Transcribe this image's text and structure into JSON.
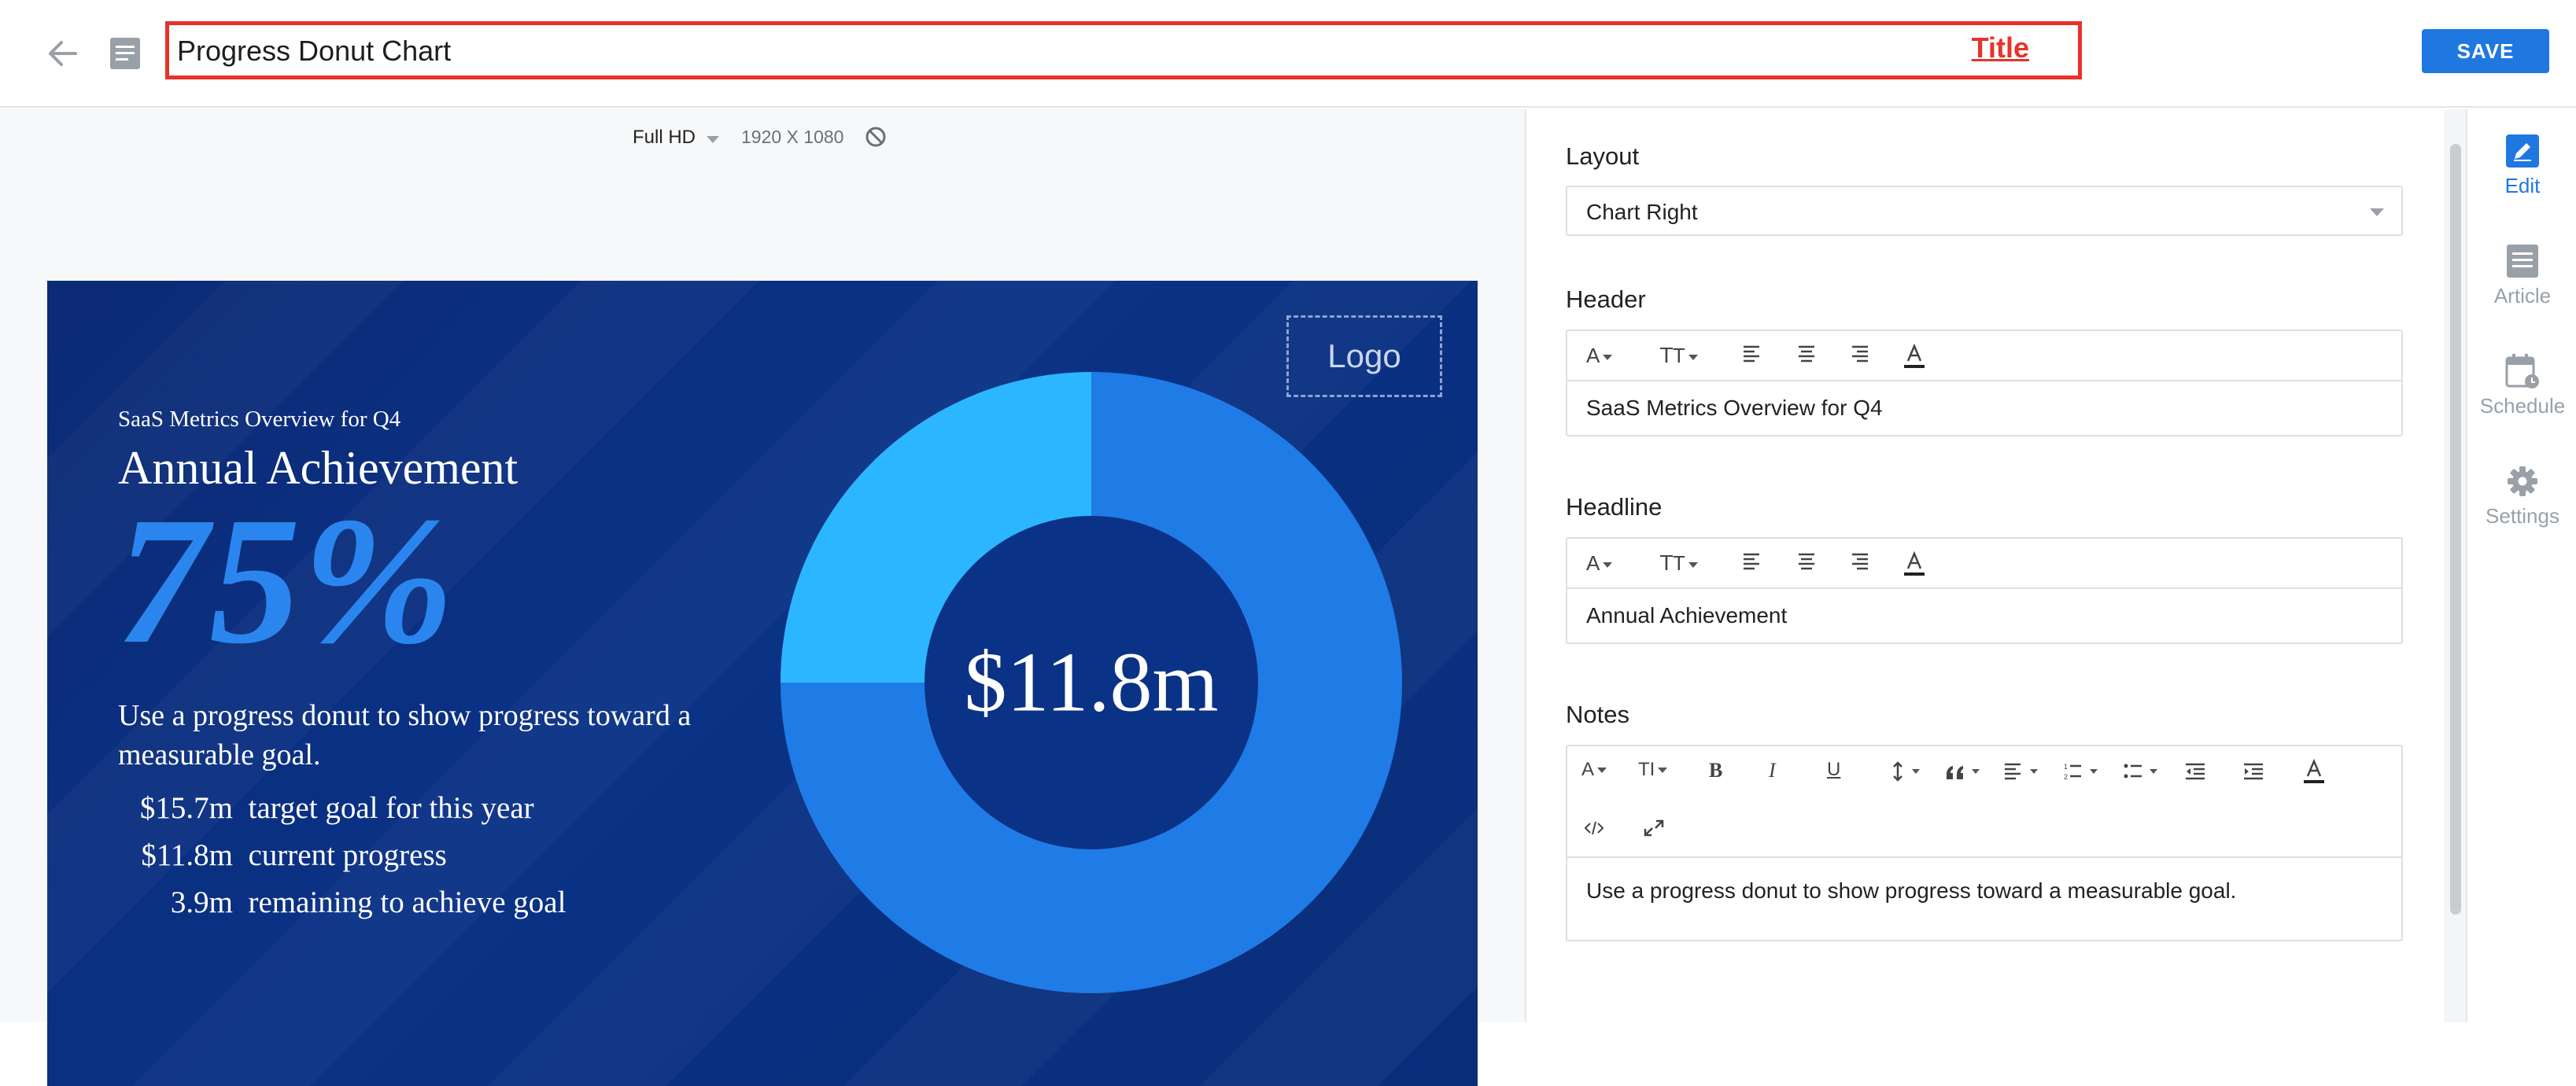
{
  "topbar": {
    "title_value": "Progress Donut Chart",
    "title_tag": "Title",
    "save_label": "SAVE"
  },
  "canvas": {
    "resolution_label": "Full HD",
    "resolution_size": "1920 X 1080"
  },
  "slide": {
    "logo_placeholder": "Logo",
    "header": "SaaS Metrics Overview for Q4",
    "headline": "Annual Achievement",
    "percent": "75%",
    "notes": "Use a progress donut to show progress toward a measurable goal.",
    "stats": [
      {
        "amount": "$15.7m",
        "label": "target goal for this year"
      },
      {
        "amount": "$11.8m",
        "label": "current progress"
      },
      {
        "amount": "3.9m",
        "label": "remaining to achieve goal"
      }
    ],
    "donut_center": "$11.8m",
    "colors": {
      "background": "#0a3286",
      "progress": "#1f7be6",
      "remaining": "#2bb6ff",
      "hole": "#0a3286",
      "accent_text": "#2a86ee"
    }
  },
  "chart_data": {
    "type": "pie",
    "categories": [
      "current progress",
      "remaining to achieve goal"
    ],
    "values": [
      75,
      25
    ],
    "center_label": "$11.8m"
  },
  "panel": {
    "layout_label": "Layout",
    "layout_value": "Chart Right",
    "header_label": "Header",
    "header_value": "SaaS Metrics Overview for Q4",
    "headline_label": "Headline",
    "headline_value": "Annual Achievement",
    "notes_label": "Notes",
    "notes_value": "Use a progress donut to show progress toward a measurable goal."
  },
  "nav": {
    "items": [
      {
        "label": "Edit",
        "icon": "pencil-icon",
        "active": true
      },
      {
        "label": "Article",
        "icon": "article-icon",
        "active": false
      },
      {
        "label": "Schedule",
        "icon": "calendar-icon",
        "active": false
      },
      {
        "label": "Settings",
        "icon": "gear-icon",
        "active": false
      }
    ]
  }
}
